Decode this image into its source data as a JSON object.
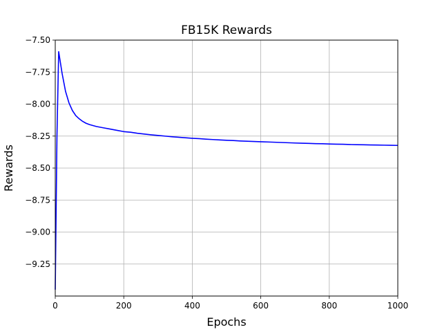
{
  "chart_data": {
    "type": "line",
    "title": "FB15K Rewards",
    "xlabel": "Epochs",
    "ylabel": "Rewards",
    "xlim": [
      0,
      1000
    ],
    "ylim": [
      -9.5,
      -7.5
    ],
    "grid": true,
    "x_ticks": [
      0,
      200,
      400,
      600,
      800,
      1000
    ],
    "x_tick_labels": [
      "0",
      "200",
      "400",
      "600",
      "800",
      "1000"
    ],
    "y_ticks": [
      -7.5,
      -7.75,
      -8.0,
      -8.25,
      -8.5,
      -8.75,
      -9.0,
      -9.25
    ],
    "y_tick_labels": [
      "−7.50",
      "−7.75",
      "−8.00",
      "−8.25",
      "−8.50",
      "−8.75",
      "−9.00",
      "−9.25"
    ],
    "series": [
      {
        "color": "#0000ff",
        "x": [
          0,
          5,
          10,
          20,
          30,
          40,
          50,
          60,
          70,
          80,
          90,
          100,
          120,
          140,
          160,
          180,
          200,
          220,
          240,
          260,
          280,
          300,
          320,
          340,
          360,
          380,
          400,
          420,
          440,
          460,
          480,
          500,
          520,
          540,
          560,
          580,
          600,
          620,
          640,
          660,
          680,
          700,
          720,
          740,
          760,
          780,
          800,
          820,
          840,
          860,
          880,
          900,
          920,
          940,
          960,
          980,
          1000
        ],
        "y": [
          -9.45,
          -8.25,
          -7.59,
          -7.76,
          -7.9,
          -7.99,
          -8.05,
          -8.09,
          -8.115,
          -8.135,
          -8.15,
          -8.16,
          -8.175,
          -8.185,
          -8.195,
          -8.205,
          -8.215,
          -8.22,
          -8.228,
          -8.234,
          -8.24,
          -8.245,
          -8.25,
          -8.255,
          -8.259,
          -8.263,
          -8.267,
          -8.27,
          -8.274,
          -8.277,
          -8.28,
          -8.283,
          -8.285,
          -8.288,
          -8.29,
          -8.292,
          -8.294,
          -8.296,
          -8.298,
          -8.3,
          -8.302,
          -8.304,
          -8.306,
          -8.307,
          -8.309,
          -8.31,
          -8.312,
          -8.313,
          -8.314,
          -8.316,
          -8.317,
          -8.318,
          -8.319,
          -8.32,
          -8.321,
          -8.322,
          -8.323
        ]
      }
    ]
  }
}
